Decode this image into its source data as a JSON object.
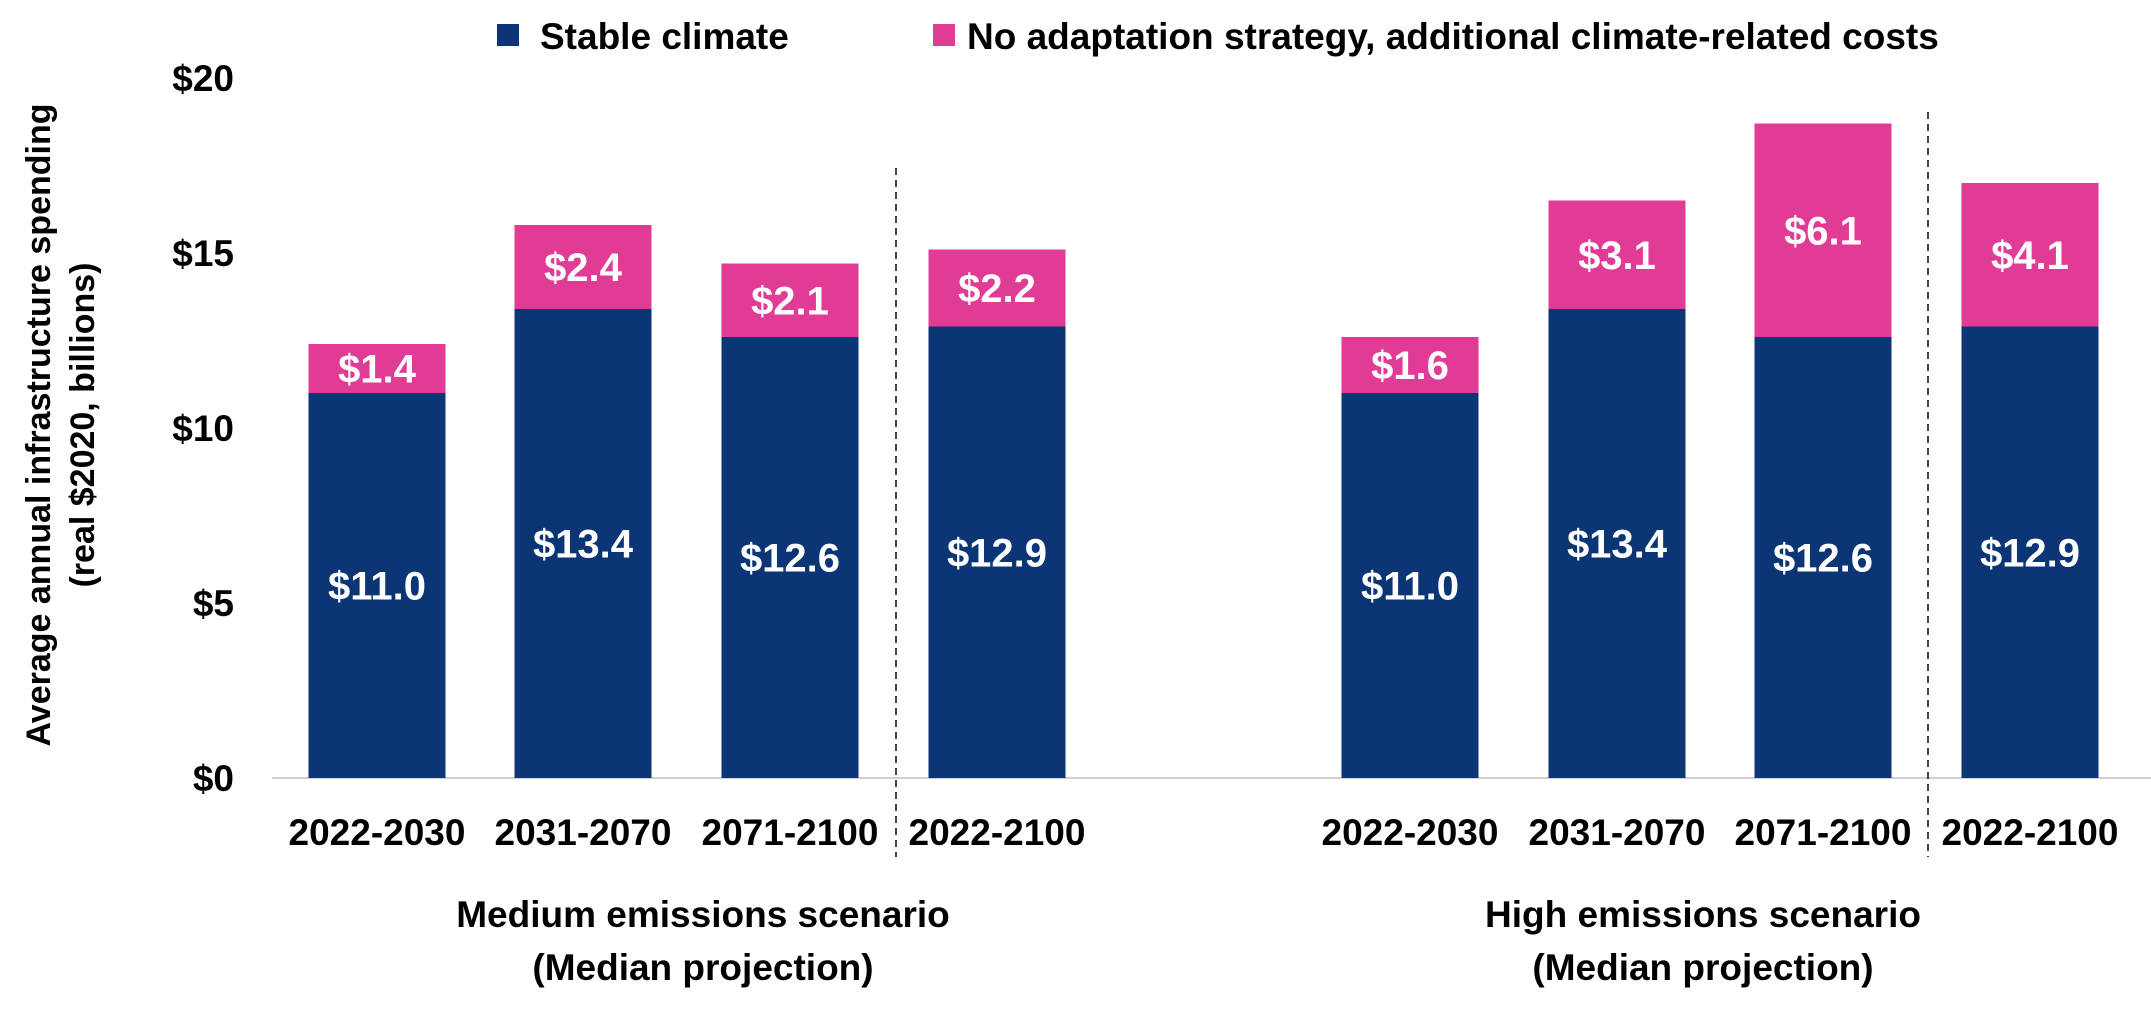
{
  "chart_data": {
    "type": "bar",
    "stacked": true,
    "ylabel": [
      "Average annual infrastructure spending",
      "(real $2020, billions)"
    ],
    "ylim": [
      0,
      20
    ],
    "yticks": [
      "$0",
      "$5",
      "$10",
      "$15",
      "$20"
    ],
    "legend_position": "top",
    "legend": [
      {
        "name": "Stable climate",
        "color": "#0b3574"
      },
      {
        "name": "No adaptation strategy, additional climate-related costs",
        "color": "#e03b95"
      }
    ],
    "groups": [
      {
        "label": [
          "Medium emissions scenario",
          "(Median projection)"
        ],
        "categories": [
          "2022-2030",
          "2031-2070",
          "2071-2100",
          "2022-2100"
        ],
        "stable_climate": [
          11.0,
          13.4,
          12.6,
          12.9
        ],
        "additional_costs": [
          1.4,
          2.4,
          2.1,
          2.2
        ],
        "stable_labels": [
          "$11.0",
          "$13.4",
          "$12.6",
          "$12.9"
        ],
        "additional_labels": [
          "$1.4",
          "$2.4",
          "$2.1",
          "$2.2"
        ]
      },
      {
        "label": [
          "High emissions scenario",
          "(Median projection)"
        ],
        "categories": [
          "2022-2030",
          "2031-2070",
          "2071-2100",
          "2022-2100"
        ],
        "stable_climate": [
          11.0,
          13.4,
          12.6,
          12.9
        ],
        "additional_costs": [
          1.6,
          3.1,
          6.1,
          4.1
        ],
        "stable_labels": [
          "$11.0",
          "$13.4",
          "$12.6",
          "$12.9"
        ],
        "additional_labels": [
          "$1.6",
          "$3.1",
          "$6.1",
          "$4.1"
        ]
      }
    ],
    "grid": false,
    "separator_before_last_category": true
  }
}
